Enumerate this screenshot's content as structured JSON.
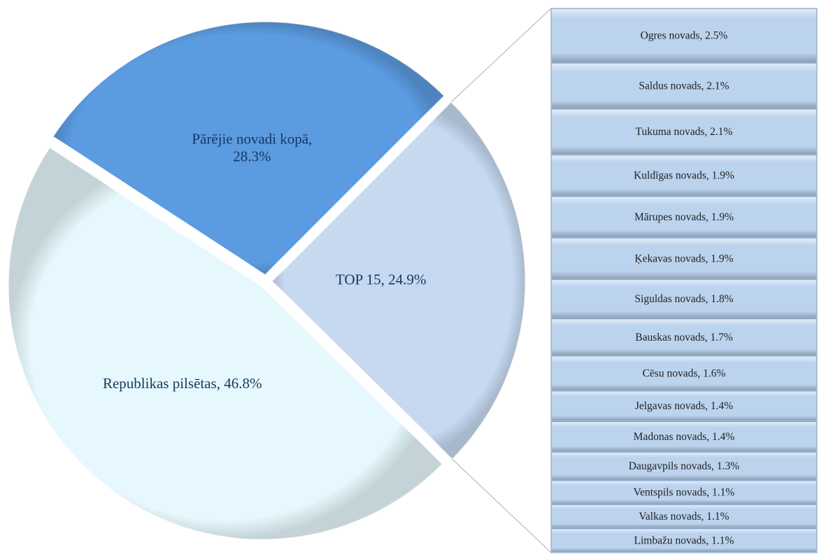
{
  "chart_data": {
    "type": "pie-of-bar",
    "pie": {
      "labels": [
        "TOP 15, 24.9%",
        "Republikas pilsētas, 46.8%",
        "Pārējie novadi kopā, 28.3%"
      ],
      "values": [
        24.9,
        46.8,
        28.3
      ],
      "colors": [
        "#c6d9f1",
        "#e6f8fd",
        "#5b9be0"
      ]
    },
    "bar": {
      "labels": [
        "Ogres novads, 2.5%",
        "Saldus novads, 2.1%",
        "Tukuma novads, 2.1%",
        "Kuldīgas novads, 1.9%",
        "Mārupes novads, 1.9%",
        "Ķekavas novads, 1.9%",
        "Siguldas novads, 1.8%",
        "Bauskas novads, 1.7%",
        "Cēsu novads, 1.6%",
        "Jelgavas novads, 1.4%",
        "Madonas novads, 1.4%",
        "Daugavpils novads, 1.3%",
        "Ventspils novads, 1.1%",
        "Valkas novads, 1.1%",
        "Limbažu novads, 1.1%"
      ],
      "values": [
        2.5,
        2.1,
        2.1,
        1.9,
        1.9,
        1.9,
        1.8,
        1.7,
        1.6,
        1.4,
        1.4,
        1.3,
        1.1,
        1.1,
        1.1
      ],
      "color": "#bcd3ee"
    }
  }
}
